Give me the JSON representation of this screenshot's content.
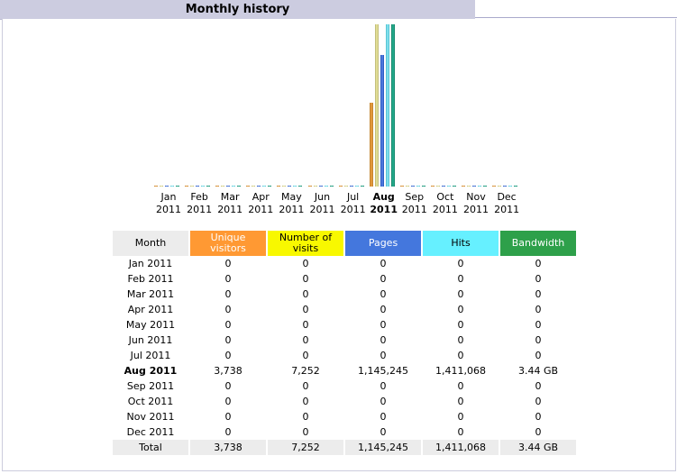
{
  "title": "Monthly history",
  "chart_data": {
    "type": "bar",
    "categories": [
      "Jan 2011",
      "Feb 2011",
      "Mar 2011",
      "Apr 2011",
      "May 2011",
      "Jun 2011",
      "Jul 2011",
      "Aug 2011",
      "Sep 2011",
      "Oct 2011",
      "Nov 2011",
      "Dec 2011"
    ],
    "series": [
      {
        "name": "Unique visitors",
        "values": [
          0,
          0,
          0,
          0,
          0,
          0,
          0,
          3738,
          0,
          0,
          0,
          0
        ]
      },
      {
        "name": "Number of visits",
        "values": [
          0,
          0,
          0,
          0,
          0,
          0,
          0,
          7252,
          0,
          0,
          0,
          0
        ]
      },
      {
        "name": "Pages",
        "values": [
          0,
          0,
          0,
          0,
          0,
          0,
          0,
          1145245,
          0,
          0,
          0,
          0
        ]
      },
      {
        "name": "Hits",
        "values": [
          0,
          0,
          0,
          0,
          0,
          0,
          0,
          1411068,
          0,
          0,
          0,
          0
        ]
      },
      {
        "name": "Bandwidth",
        "values": [
          0,
          0,
          0,
          0,
          0,
          0,
          0,
          3.44,
          0,
          0,
          0,
          0
        ]
      }
    ],
    "colors": [
      "#f0a040",
      "#f0eca0",
      "#4477dd",
      "#66f0ff",
      "#2bb898"
    ]
  },
  "months": [
    {
      "mon": "Jan",
      "year": "2011"
    },
    {
      "mon": "Feb",
      "year": "2011"
    },
    {
      "mon": "Mar",
      "year": "2011"
    },
    {
      "mon": "Apr",
      "year": "2011"
    },
    {
      "mon": "May",
      "year": "2011"
    },
    {
      "mon": "Jun",
      "year": "2011"
    },
    {
      "mon": "Jul",
      "year": "2011"
    },
    {
      "mon": "Aug",
      "year": "2011"
    },
    {
      "mon": "Sep",
      "year": "2011"
    },
    {
      "mon": "Oct",
      "year": "2011"
    },
    {
      "mon": "Nov",
      "year": "2011"
    },
    {
      "mon": "Dec",
      "year": "2011"
    }
  ],
  "current_month_index": 7,
  "table": {
    "headers": {
      "month": "Month",
      "unique": "Unique visitors",
      "visits": "Number of visits",
      "pages": "Pages",
      "hits": "Hits",
      "bandwidth": "Bandwidth"
    },
    "rows": [
      [
        "Jan 2011",
        "0",
        "0",
        "0",
        "0",
        "0"
      ],
      [
        "Feb 2011",
        "0",
        "0",
        "0",
        "0",
        "0"
      ],
      [
        "Mar 2011",
        "0",
        "0",
        "0",
        "0",
        "0"
      ],
      [
        "Apr 2011",
        "0",
        "0",
        "0",
        "0",
        "0"
      ],
      [
        "May 2011",
        "0",
        "0",
        "0",
        "0",
        "0"
      ],
      [
        "Jun 2011",
        "0",
        "0",
        "0",
        "0",
        "0"
      ],
      [
        "Jul 2011",
        "0",
        "0",
        "0",
        "0",
        "0"
      ],
      [
        "Aug 2011",
        "3,738",
        "7,252",
        "1,145,245",
        "1,411,068",
        "3.44 GB"
      ],
      [
        "Sep 2011",
        "0",
        "0",
        "0",
        "0",
        "0"
      ],
      [
        "Oct 2011",
        "0",
        "0",
        "0",
        "0",
        "0"
      ],
      [
        "Nov 2011",
        "0",
        "0",
        "0",
        "0",
        "0"
      ],
      [
        "Dec 2011",
        "0",
        "0",
        "0",
        "0",
        "0"
      ]
    ],
    "total": [
      "Total",
      "3,738",
      "7,252",
      "1,145,245",
      "1,411,068",
      "3.44 GB"
    ]
  }
}
